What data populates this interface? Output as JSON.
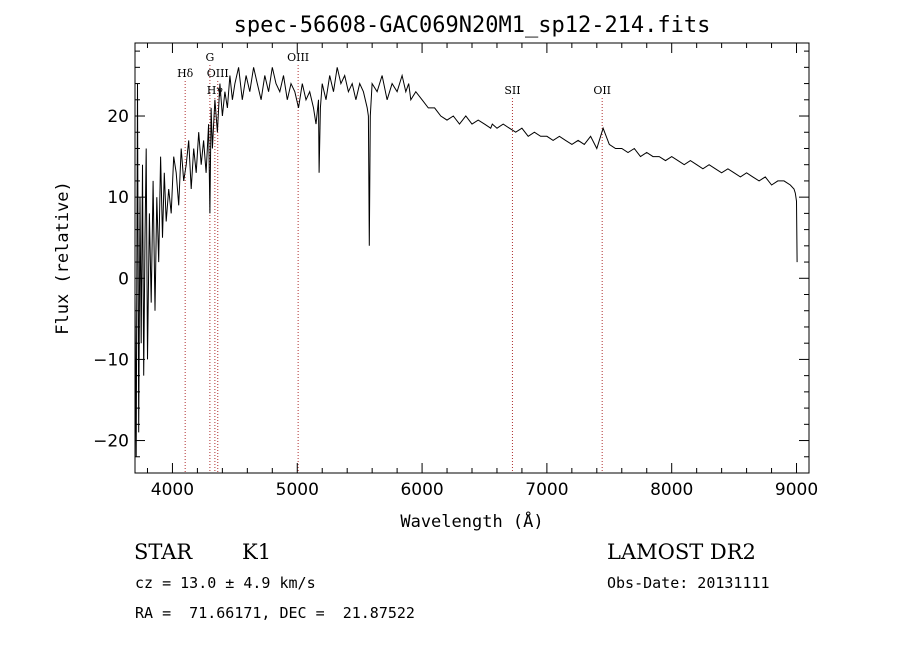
{
  "chart_data": {
    "type": "line",
    "title": "spec-56608-GAC069N20M1_sp12-214.fits",
    "xlabel": "Wavelength (Å)",
    "ylabel": "Flux (relative)",
    "xlim": [
      3700,
      9100
    ],
    "ylim": [
      -24,
      29
    ],
    "x_ticks": [
      4000,
      5000,
      6000,
      7000,
      8000,
      9000
    ],
    "y_ticks": [
      -20,
      -10,
      0,
      10,
      20
    ],
    "grid": false,
    "series": [
      {
        "color": "#000000",
        "x": [
          3700,
          3710,
          3720,
          3730,
          3740,
          3750,
          3760,
          3770,
          3780,
          3790,
          3800,
          3815,
          3830,
          3845,
          3860,
          3875,
          3890,
          3905,
          3920,
          3935,
          3950,
          3970,
          3990,
          4010,
          4030,
          4050,
          4070,
          4090,
          4110,
          4130,
          4150,
          4170,
          4190,
          4210,
          4230,
          4250,
          4270,
          4290,
          4300,
          4310,
          4320,
          4340,
          4360,
          4380,
          4400,
          4420,
          4440,
          4460,
          4480,
          4500,
          4530,
          4560,
          4590,
          4620,
          4650,
          4680,
          4710,
          4740,
          4770,
          4800,
          4830,
          4860,
          4890,
          4920,
          4950,
          4980,
          5010,
          5040,
          5070,
          5100,
          5130,
          5150,
          5170,
          5175,
          5185,
          5200,
          5230,
          5260,
          5290,
          5320,
          5350,
          5380,
          5410,
          5440,
          5470,
          5500,
          5530,
          5560,
          5570,
          5577,
          5585,
          5600,
          5640,
          5680,
          5720,
          5760,
          5800,
          5840,
          5870,
          5893,
          5910,
          5950,
          6000,
          6050,
          6100,
          6150,
          6200,
          6250,
          6300,
          6350,
          6400,
          6450,
          6500,
          6550,
          6563,
          6600,
          6650,
          6700,
          6750,
          6800,
          6850,
          6900,
          6950,
          7000,
          7050,
          7100,
          7150,
          7200,
          7250,
          7300,
          7350,
          7400,
          7450,
          7500,
          7550,
          7600,
          7650,
          7700,
          7750,
          7800,
          7850,
          7900,
          7950,
          8000,
          8050,
          8100,
          8150,
          8200,
          8250,
          8300,
          8350,
          8400,
          8450,
          8500,
          8550,
          8600,
          8650,
          8700,
          8750,
          8800,
          8850,
          8900,
          8950,
          8980,
          8990,
          9000,
          9005
        ],
        "y": [
          -2,
          -22,
          24,
          -19,
          10,
          -8,
          14,
          -12,
          5,
          16,
          -10,
          8,
          -3,
          12,
          -4,
          10,
          2,
          15,
          5,
          13,
          7,
          11,
          8,
          15,
          13,
          9,
          16,
          12,
          14,
          17,
          11,
          16,
          13,
          18,
          14,
          17,
          13,
          19,
          8,
          21,
          16,
          22,
          18,
          24,
          20,
          23,
          21,
          25,
          22,
          24,
          26,
          22,
          25,
          23,
          26,
          24,
          22,
          25,
          23,
          26,
          24,
          23,
          25,
          22,
          24,
          23,
          21,
          24,
          22,
          23,
          21,
          19,
          22,
          13,
          21,
          24,
          22,
          25,
          23,
          26,
          24,
          25,
          23,
          24,
          22,
          24,
          23,
          21,
          20,
          4,
          20,
          24,
          23,
          25,
          22,
          24,
          23,
          25,
          23,
          24,
          22,
          23,
          22,
          21,
          21,
          20,
          19.5,
          20,
          19,
          20,
          19,
          19.5,
          19,
          18.5,
          19,
          18.5,
          19,
          18.5,
          18,
          18.5,
          17.5,
          18,
          17.5,
          17.5,
          17,
          17.5,
          17,
          16.5,
          17,
          16.5,
          17.5,
          16,
          18.5,
          16.5,
          16,
          16,
          15.5,
          16,
          15,
          15.5,
          15,
          15,
          14.5,
          15,
          14.5,
          14,
          14.5,
          14,
          13.5,
          14,
          13.5,
          13,
          13.5,
          13,
          12.5,
          13,
          12.5,
          12,
          12.5,
          11.5,
          12,
          12,
          11.5,
          11,
          10.5,
          9.5,
          2
        ]
      }
    ],
    "annotations": [
      {
        "x": 4102,
        "label": "Hδ",
        "row": 1
      },
      {
        "x": 4300,
        "label": "G",
        "row": 0
      },
      {
        "x": 4340,
        "label": "Hγ",
        "row": 2
      },
      {
        "x": 4363,
        "label": "OIII",
        "row": 1
      },
      {
        "x": 5007,
        "label": "OIII",
        "row": 0
      },
      {
        "x": 6724,
        "label": "SII",
        "row": 2
      },
      {
        "x": 7443,
        "label": "OII",
        "row": 2
      }
    ],
    "annotation_line_color": "#b03030"
  },
  "footer": {
    "object_class": "STAR",
    "subclass": "K1",
    "survey": "LAMOST DR2",
    "cz": "cz = 13.0 ± 4.9 km/s",
    "obs_date": "Obs-Date: 20131111",
    "coords": "RA =  71.66171, DEC =  21.87522"
  }
}
